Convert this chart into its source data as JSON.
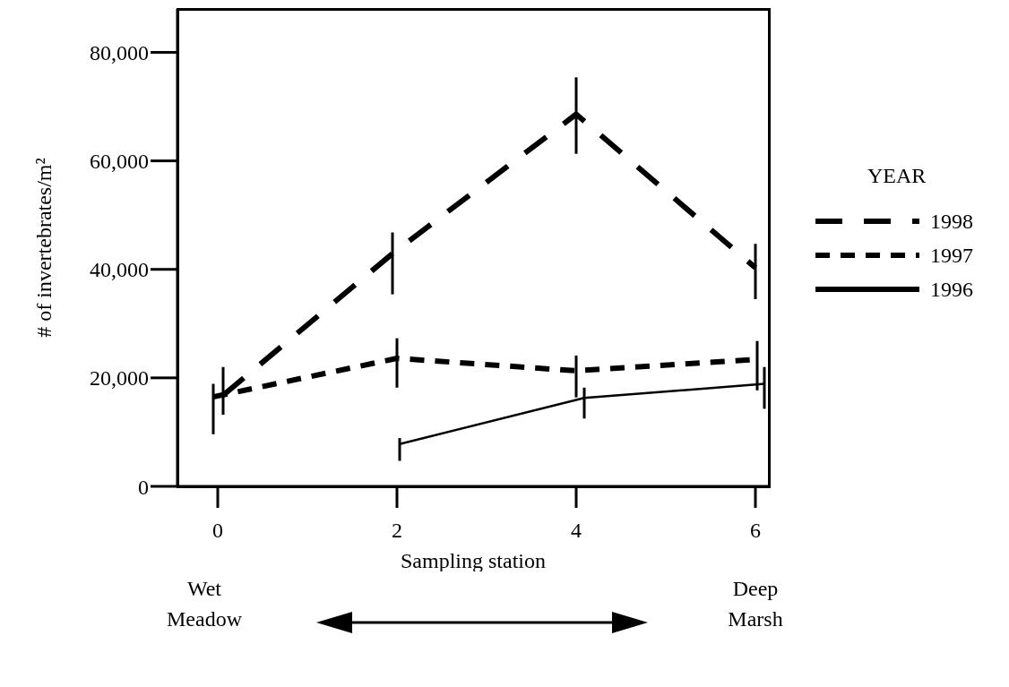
{
  "chart_data": {
    "type": "line",
    "xlabel": "Sampling station",
    "ylabel": "# of invertebrates/m²",
    "legend_title": "YEAR",
    "legend": "right",
    "xlim": [
      -0.45,
      6.15
    ],
    "xticks": [
      0,
      2,
      4,
      6
    ],
    "ylim": [
      0,
      88000
    ],
    "yticks": [
      0,
      {
        "value": 20000,
        "label": "20,000"
      },
      {
        "value": 40000,
        "label": "40,000"
      },
      {
        "value": 60000,
        "label": "60,000"
      },
      {
        "value": 80000,
        "label": "80,000"
      }
    ],
    "marker": "none",
    "series": [
      {
        "name": "1998",
        "color": "#000000",
        "line_style": "dashed",
        "x": [
          0.06,
          1.95,
          4,
          6
        ],
        "values": [
          16800,
          42900,
          68600,
          40300
        ],
        "errors": [
          [
            13200,
            22000
          ],
          [
            35400,
            46800
          ],
          [
            61300,
            75400
          ],
          [
            34500,
            44700
          ]
        ]
      },
      {
        "name": "1997",
        "color": "#000000",
        "line_style": "dashed",
        "x": [
          -0.05,
          2,
          4,
          6.02
        ],
        "values": [
          16500,
          23600,
          21300,
          23400
        ],
        "errors": [
          [
            9600,
            18900
          ],
          [
            18200,
            27300
          ],
          [
            16400,
            24100
          ],
          [
            17700,
            26800
          ]
        ]
      },
      {
        "name": "1996",
        "color": "#000000",
        "line_style": "solid",
        "x": [
          2.03,
          4.09,
          6.1
        ],
        "values": [
          7800,
          16300,
          18900
        ],
        "errors": [
          [
            4700,
            8900
          ],
          [
            12500,
            18200
          ],
          [
            14300,
            22000
          ]
        ]
      }
    ],
    "annotations": [
      "Wet Meadow",
      "Deep Marsh"
    ]
  }
}
